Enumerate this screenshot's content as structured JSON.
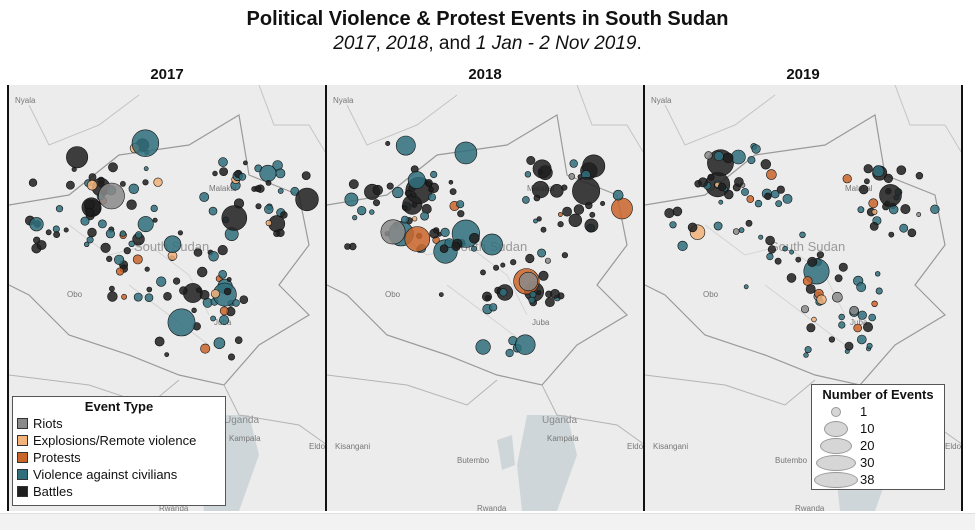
{
  "title": "Political Violence & Protest Events in South Sudan",
  "subtitle": {
    "part1": "2017",
    "part2": ", ",
    "part3": "2018",
    "part4": ", and ",
    "part5": "1 Jan - 2 Nov 2019",
    "part6": "."
  },
  "panels": [
    {
      "label": "2017"
    },
    {
      "label": "2018"
    },
    {
      "label": "2019"
    }
  ],
  "place_labels": {
    "nyala": "Nyala",
    "malakal": "Malakal",
    "south_sudan": "South Sudan",
    "obo": "Obo",
    "juba": "Juba",
    "uganda": "Uganda",
    "kampala": "Kampala",
    "kisangani": "Kisangani",
    "butembo": "Butembo",
    "rwanda": "Rwanda",
    "eldo": "Eldo"
  },
  "legend_event_type": {
    "title": "Event Type",
    "items": [
      {
        "label": "Riots",
        "color": "#8a8a8a"
      },
      {
        "label": "Explosions/Remote violence",
        "color": "#f2b27a"
      },
      {
        "label": "Protests",
        "color": "#c9652a"
      },
      {
        "label": "Violence against civilians",
        "color": "#2f6f7c"
      },
      {
        "label": "Battles",
        "color": "#1e1e1e"
      }
    ]
  },
  "legend_event_count": {
    "title": "Number of Events",
    "items": [
      {
        "label": "1",
        "value": 1
      },
      {
        "label": "10",
        "value": 10
      },
      {
        "label": "20",
        "value": 20
      },
      {
        "label": "30",
        "value": 30
      },
      {
        "label": "38",
        "value": 38
      }
    ]
  }
}
